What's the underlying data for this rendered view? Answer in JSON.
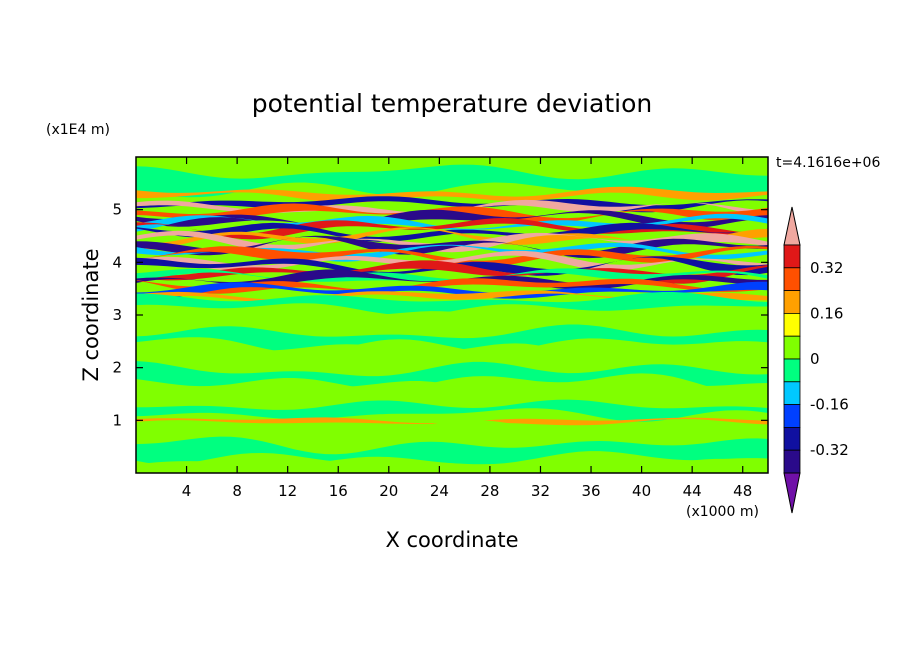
{
  "chart_data": {
    "type": "heatmap",
    "title": "potential temperature deviation",
    "xlabel": "X coordinate",
    "ylabel": "Z coordinate",
    "x_unit": "(x1000 m)",
    "y_unit": "(x1E4 m)",
    "time_label": "t=4.1616e+06",
    "xlim": [
      0,
      50
    ],
    "ylim": [
      0,
      6
    ],
    "x_ticks": [
      "4",
      "8",
      "12",
      "16",
      "20",
      "24",
      "28",
      "32",
      "36",
      "40",
      "44",
      "48"
    ],
    "y_ticks": [
      "1",
      "2",
      "3",
      "4",
      "5"
    ],
    "x_tick_values": [
      4,
      8,
      12,
      16,
      20,
      24,
      28,
      32,
      36,
      40,
      44,
      48
    ],
    "y_tick_values": [
      1,
      2,
      3,
      4,
      5
    ],
    "colorbar": {
      "levels": [
        -0.4,
        -0.32,
        -0.24,
        -0.16,
        -0.08,
        0,
        0.08,
        0.16,
        0.24,
        0.32,
        0.4
      ],
      "colors": [
        "#2a0a8a",
        "#1010a0",
        "#0040ff",
        "#00c8ff",
        "#00ff80",
        "#80ff00",
        "#ffff00",
        "#ffa000",
        "#ff5000",
        "#e01818",
        "#f0a8a0"
      ],
      "under_color": "#7010a8",
      "over_color": "#f0a8a0",
      "tick_labels": [
        "0.32",
        "0.16",
        "0",
        "-0.16",
        "-0.32"
      ],
      "tick_values": [
        0.32,
        0.16,
        0,
        -0.16,
        -0.32
      ]
    },
    "bands": [
      {
        "z": 5.85,
        "width": 0.25,
        "level": 5,
        "amp": 0.05
      },
      {
        "z": 5.55,
        "width": 0.22,
        "level": 4,
        "amp": 0.06
      },
      {
        "z": 5.28,
        "width": 0.07,
        "level": 7,
        "amp": 0.05
      },
      {
        "z": 5.12,
        "width": 0.06,
        "level": 1,
        "amp": 0.05
      },
      {
        "z": 5.03,
        "width": 0.05,
        "level": 10,
        "amp": 0.07
      },
      {
        "z": 4.93,
        "width": 0.07,
        "level": 8,
        "amp": 0.08
      },
      {
        "z": 4.83,
        "width": 0.06,
        "level": 0,
        "amp": 0.09
      },
      {
        "z": 4.74,
        "width": 0.05,
        "level": 3,
        "amp": 0.08
      },
      {
        "z": 4.66,
        "width": 0.06,
        "level": 9,
        "amp": 0.09
      },
      {
        "z": 4.57,
        "width": 0.06,
        "level": 1,
        "amp": 0.08
      },
      {
        "z": 4.48,
        "width": 0.05,
        "level": 7,
        "amp": 0.09
      },
      {
        "z": 4.4,
        "width": 0.06,
        "level": 10,
        "amp": 0.08
      },
      {
        "z": 4.31,
        "width": 0.06,
        "level": 0,
        "amp": 0.09
      },
      {
        "z": 4.22,
        "width": 0.05,
        "level": 3,
        "amp": 0.07
      },
      {
        "z": 4.13,
        "width": 0.07,
        "level": 8,
        "amp": 0.08
      },
      {
        "z": 4.02,
        "width": 0.06,
        "level": 10,
        "amp": 0.08
      },
      {
        "z": 3.92,
        "width": 0.06,
        "level": 1,
        "amp": 0.09
      },
      {
        "z": 3.83,
        "width": 0.06,
        "level": 9,
        "amp": 0.08
      },
      {
        "z": 3.74,
        "width": 0.05,
        "level": 4,
        "amp": 0.07
      },
      {
        "z": 3.66,
        "width": 0.06,
        "level": 0,
        "amp": 0.08
      },
      {
        "z": 3.56,
        "width": 0.06,
        "level": 8,
        "amp": 0.07
      },
      {
        "z": 3.46,
        "width": 0.06,
        "level": 2,
        "amp": 0.06
      },
      {
        "z": 3.36,
        "width": 0.05,
        "level": 7,
        "amp": 0.05
      },
      {
        "z": 3.22,
        "width": 0.12,
        "level": 4,
        "amp": 0.05
      },
      {
        "z": 2.85,
        "width": 0.18,
        "level": 5,
        "amp": 0.08
      },
      {
        "z": 2.55,
        "width": 0.15,
        "level": 4,
        "amp": 0.07
      },
      {
        "z": 2.2,
        "width": 0.2,
        "level": 5,
        "amp": 0.09
      },
      {
        "z": 1.85,
        "width": 0.15,
        "level": 4,
        "amp": 0.08
      },
      {
        "z": 1.5,
        "width": 0.18,
        "level": 5,
        "amp": 0.07
      },
      {
        "z": 1.2,
        "width": 0.12,
        "level": 4,
        "amp": 0.06
      },
      {
        "z": 0.98,
        "width": 0.04,
        "level": 7,
        "amp": 0.03
      },
      {
        "z": 0.75,
        "width": 0.15,
        "level": 5,
        "amp": 0.07
      },
      {
        "z": 0.4,
        "width": 0.18,
        "level": 4,
        "amp": 0.08
      },
      {
        "z": 0.12,
        "width": 0.1,
        "level": 5,
        "amp": 0.05
      }
    ]
  }
}
